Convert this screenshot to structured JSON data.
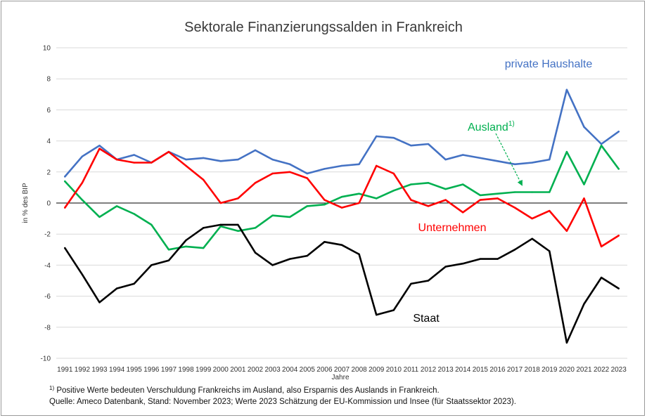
{
  "chart_data": {
    "type": "line",
    "title": "Sektorale Finanzierungssalden in Frankreich",
    "xlabel": "Jahre",
    "ylabel": "in % des BIP",
    "ylim": [
      -10,
      10
    ],
    "yticks": [
      -10,
      -8,
      -6,
      -4,
      -2,
      0,
      2,
      4,
      6,
      8,
      10
    ],
    "grid": true,
    "categories": [
      "1991",
      "1992",
      "1993",
      "1994",
      "1995",
      "1996",
      "1997",
      "1998",
      "1999",
      "2000",
      "2001",
      "2002",
      "2003",
      "2004",
      "2005",
      "2006",
      "2007",
      "2008",
      "2009",
      "2010",
      "2011",
      "2012",
      "2013",
      "2014",
      "2015",
      "2016",
      "2017",
      "2018",
      "2019",
      "2020",
      "2021",
      "2022",
      "2023"
    ],
    "series": [
      {
        "name": "private Haushalte",
        "color": "#4472c4",
        "values": [
          1.7,
          3.0,
          3.7,
          2.8,
          3.1,
          2.6,
          3.3,
          2.8,
          2.9,
          2.7,
          2.8,
          3.4,
          2.8,
          2.5,
          1.9,
          2.2,
          2.4,
          2.5,
          4.3,
          4.2,
          3.7,
          3.8,
          2.8,
          3.1,
          2.9,
          2.7,
          2.5,
          2.6,
          2.8,
          7.3,
          4.9,
          3.8,
          4.6
        ]
      },
      {
        "name": "Ausland",
        "superscript": "1)",
        "color": "#00b050",
        "values": [
          1.4,
          0.2,
          -0.9,
          -0.2,
          -0.7,
          -1.4,
          -3.0,
          -2.8,
          -2.9,
          -1.5,
          -1.8,
          -1.6,
          -0.8,
          -0.9,
          -0.2,
          -0.1,
          0.4,
          0.6,
          0.3,
          0.8,
          1.2,
          1.3,
          0.9,
          1.2,
          0.5,
          0.6,
          0.7,
          0.7,
          0.7,
          3.3,
          1.2,
          3.7,
          2.2
        ]
      },
      {
        "name": "Unternehmen",
        "color": "#ff0000",
        "values": [
          -0.3,
          1.3,
          3.5,
          2.8,
          2.6,
          2.6,
          3.3,
          2.4,
          1.5,
          0.0,
          0.3,
          1.3,
          1.9,
          2.0,
          1.6,
          0.2,
          -0.3,
          0.0,
          2.4,
          1.9,
          0.2,
          -0.2,
          0.2,
          -0.6,
          0.2,
          0.3,
          -0.3,
          -1.0,
          -0.5,
          -1.8,
          0.3,
          -2.8,
          -2.1
        ]
      },
      {
        "name": "Staat",
        "color": "#000000",
        "values": [
          -2.9,
          -4.6,
          -6.4,
          -5.5,
          -5.2,
          -4.0,
          -3.7,
          -2.4,
          -1.6,
          -1.4,
          -1.4,
          -3.2,
          -4.0,
          -3.6,
          -3.4,
          -2.5,
          -2.7,
          -3.3,
          -7.2,
          -6.9,
          -5.2,
          -5.0,
          -4.1,
          -3.9,
          -3.6,
          -3.6,
          -3.0,
          -2.3,
          -3.1,
          -9.0,
          -6.5,
          -4.8,
          -5.5
        ]
      }
    ]
  },
  "footnotes": {
    "note_marker": "1)",
    "note_text": "Positive Werte bedeuten Verschuldung Frankreichs im Ausland, also Ersparnis des Auslands in Frankreich.",
    "source": "Quelle: Ameco Datenbank, Stand: November 2023; Werte 2023 Schätzung der EU-Kommission und Insee (für Staatssektor 2023)."
  }
}
